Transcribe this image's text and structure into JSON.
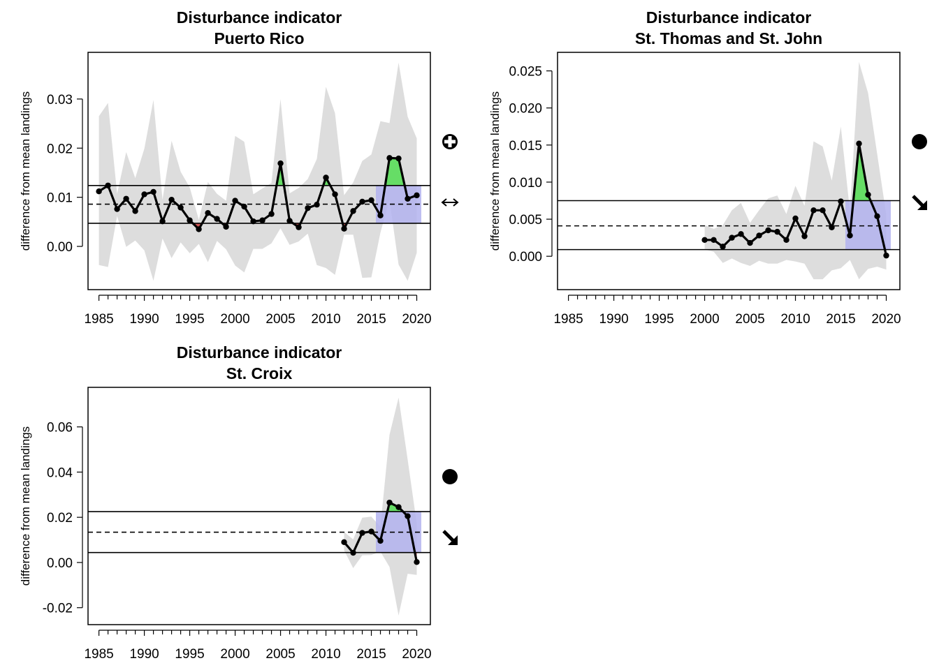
{
  "figure": {
    "colors": {
      "band": "#dddddd",
      "above": "#66dd66",
      "below": "#cc5555",
      "recent": "#b3b3ee",
      "line": "#000000"
    },
    "ylabel": "difference from mean landings"
  },
  "chart_data": [
    {
      "type": "line",
      "title": "Disturbance indicator",
      "subtitle": "Puerto Rico",
      "xlabel": "",
      "ylabel": "difference from mean landings",
      "xlim": [
        1983.8,
        2021.5
      ],
      "ylim": [
        -0.0088,
        0.0395
      ],
      "xticks": [
        1985,
        1990,
        1995,
        2000,
        2005,
        2010,
        2015,
        2020
      ],
      "yticks": [
        0.0,
        0.01,
        0.02,
        0.03
      ],
      "ytick_labels": [
        "0.00",
        "0.01",
        "0.02",
        "0.03"
      ],
      "x": [
        1985,
        1986,
        1987,
        1988,
        1989,
        1990,
        1991,
        1992,
        1993,
        1994,
        1995,
        1996,
        1997,
        1998,
        1999,
        2000,
        2001,
        2002,
        2003,
        2004,
        2005,
        2006,
        2007,
        2008,
        2009,
        2010,
        2011,
        2012,
        2013,
        2014,
        2015,
        2016,
        2017,
        2018,
        2019,
        2020
      ],
      "values": [
        0.0112,
        0.0124,
        0.0076,
        0.0097,
        0.0072,
        0.0106,
        0.0111,
        0.0051,
        0.0095,
        0.0079,
        0.0053,
        0.0035,
        0.0068,
        0.0056,
        0.004,
        0.0093,
        0.0081,
        0.0051,
        0.0053,
        0.0066,
        0.0169,
        0.0052,
        0.0039,
        0.0078,
        0.0085,
        0.014,
        0.0106,
        0.0036,
        0.0072,
        0.0091,
        0.0094,
        0.0063,
        0.018,
        0.0179,
        0.0097,
        0.0104
      ],
      "band_upper": [
        0.0265,
        0.0292,
        0.0107,
        0.0192,
        0.0139,
        0.0199,
        0.0298,
        0.0095,
        0.0215,
        0.0152,
        0.012,
        0.0054,
        0.0131,
        0.0107,
        0.0093,
        0.0225,
        0.0213,
        0.0106,
        0.0118,
        0.0129,
        0.03,
        0.0108,
        0.0119,
        0.0137,
        0.0178,
        0.0325,
        0.0271,
        0.0104,
        0.013,
        0.0174,
        0.0187,
        0.0255,
        0.0251,
        0.0374,
        0.0264,
        0.022
      ],
      "band_lower": [
        -0.0038,
        -0.0042,
        0.0062,
        -0.0001,
        0.0012,
        -0.0008,
        -0.007,
        0.0016,
        -0.0024,
        0.0008,
        -0.0014,
        0.0005,
        -0.0032,
        0.0011,
        -0.0006,
        -0.0039,
        -0.0053,
        -0.0005,
        -0.0005,
        0.0006,
        0.0037,
        0.0003,
        0.001,
        0.0026,
        -0.0038,
        -0.0044,
        -0.0058,
        0.0024,
        0.0024,
        -0.0064,
        -0.0063,
        0.0028,
        0.0095,
        -0.0037,
        -0.007,
        -0.0013
      ],
      "mean": 0.0086,
      "upper_sd": 0.0124,
      "lower_sd": 0.0047,
      "recent_window": [
        2015.5,
        2020.5
      ],
      "trend_mean_symbol": "plus-circle",
      "trend_slope_symbol": "left-right-arrow"
    },
    {
      "type": "line",
      "title": "Disturbance indicator",
      "subtitle": "St. Thomas and St. John",
      "xlabel": "",
      "ylabel": "difference from mean landings",
      "xlim": [
        1983.8,
        2021.5
      ],
      "ylim": [
        -0.0045,
        0.0275
      ],
      "xticks": [
        1985,
        1990,
        1995,
        2000,
        2005,
        2010,
        2015,
        2020
      ],
      "yticks": [
        0.0,
        0.005,
        0.01,
        0.015,
        0.02,
        0.025
      ],
      "ytick_labels": [
        "0.000",
        "0.005",
        "0.010",
        "0.015",
        "0.020",
        "0.025"
      ],
      "x": [
        2000,
        2001,
        2002,
        2003,
        2004,
        2005,
        2006,
        2007,
        2008,
        2009,
        2010,
        2011,
        2012,
        2013,
        2014,
        2015,
        2016,
        2017,
        2018,
        2019,
        2020
      ],
      "values": [
        0.0022,
        0.0022,
        0.0013,
        0.0025,
        0.003,
        0.0018,
        0.0028,
        0.0035,
        0.0033,
        0.0022,
        0.0051,
        0.0027,
        0.0062,
        0.0062,
        0.0039,
        0.0074,
        0.0028,
        0.0152,
        0.0083,
        0.0054,
        0.0001
      ],
      "band_upper": [
        0.0042,
        0.0037,
        0.0042,
        0.0062,
        0.0072,
        0.0045,
        0.0062,
        0.0078,
        0.0082,
        0.0057,
        0.0095,
        0.0068,
        0.0155,
        0.0148,
        0.0102,
        0.0175,
        0.0061,
        0.0262,
        0.022,
        0.0138,
        0.0056
      ],
      "band_lower": [
        0.0009,
        0.0006,
        -0.0009,
        -0.0003,
        -0.0009,
        -0.0013,
        -0.0006,
        -0.001,
        -0.001,
        -0.0005,
        -0.0007,
        -0.001,
        -0.0031,
        -0.0031,
        -0.0019,
        -0.0016,
        -0.0005,
        -0.0031,
        -0.0017,
        -0.0014,
        -0.0018
      ],
      "mean": 0.0041,
      "upper_sd": 0.0075,
      "lower_sd": 0.0009,
      "recent_window": [
        2015.5,
        2020.5
      ],
      "trend_mean_symbol": "filled-circle",
      "trend_slope_symbol": "down-arrow"
    },
    {
      "type": "line",
      "title": "Disturbance indicator",
      "subtitle": "St. Croix",
      "xlabel": "",
      "ylabel": "difference from mean landings",
      "xlim": [
        1983.8,
        2021.5
      ],
      "ylim": [
        -0.0275,
        0.0775
      ],
      "xticks": [
        1985,
        1990,
        1995,
        2000,
        2005,
        2010,
        2015,
        2020
      ],
      "yticks": [
        -0.02,
        0.0,
        0.02,
        0.04,
        0.06
      ],
      "ytick_labels": [
        "-0.02",
        "0.00",
        "0.02",
        "0.04",
        "0.06"
      ],
      "x": [
        2012,
        2013,
        2014,
        2015,
        2016,
        2017,
        2018,
        2019,
        2020
      ],
      "values": [
        0.009,
        0.0043,
        0.0131,
        0.0137,
        0.0096,
        0.0265,
        0.0245,
        0.0205,
        0.0002
      ],
      "band_upper": [
        0.0135,
        0.0102,
        0.0198,
        0.0203,
        0.0158,
        0.0565,
        0.073,
        0.0455,
        0.0172
      ],
      "band_lower": [
        0.0054,
        -0.0025,
        0.0032,
        0.0033,
        0.0048,
        -0.002,
        -0.0235,
        -0.005,
        -0.0055
      ],
      "mean": 0.0134,
      "upper_sd": 0.0225,
      "lower_sd": 0.0044,
      "recent_window": [
        2015.5,
        2020.5
      ],
      "trend_mean_symbol": "filled-circle",
      "trend_slope_symbol": "down-arrow"
    }
  ]
}
